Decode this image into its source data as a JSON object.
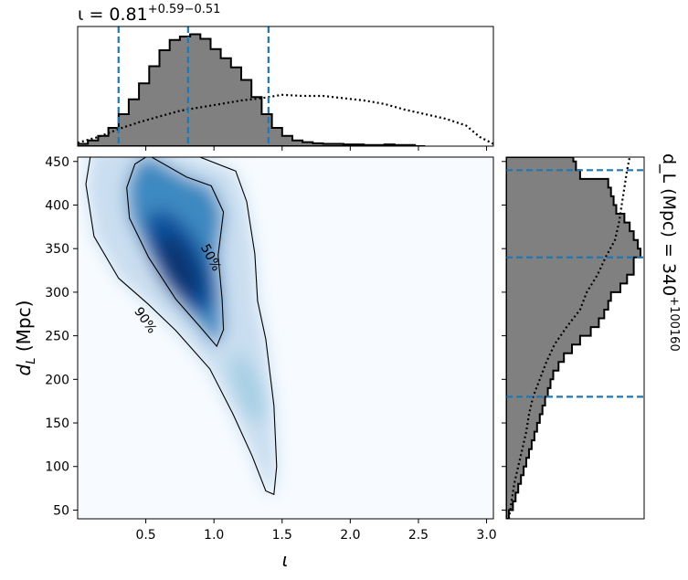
{
  "chart_data": [
    {
      "type": "heatmap",
      "panel": "joint-posterior",
      "xlabel": "ι",
      "ylabel": "d_L (Mpc)",
      "xlim": [
        0.0,
        3.05
      ],
      "ylim": [
        40,
        455
      ],
      "x_ticks": [
        0.5,
        1.0,
        1.5,
        2.0,
        2.5,
        3.0
      ],
      "x_tick_labels": [
        "0.5",
        "1.0",
        "1.5",
        "2.0",
        "2.5",
        "3.0"
      ],
      "y_ticks": [
        50,
        100,
        150,
        200,
        250,
        300,
        350,
        400,
        450
      ],
      "y_tick_labels": [
        "50",
        "100",
        "150",
        "200",
        "250",
        "300",
        "350",
        "400",
        "450"
      ],
      "colormap": "Blues",
      "density_peak": {
        "x": 0.75,
        "y": 335
      },
      "contours": [
        {
          "label": "50%",
          "points": [
            [
              0.52,
              457
            ],
            [
              0.8,
              432
            ],
            [
              0.98,
              422
            ],
            [
              1.07,
              392
            ],
            [
              1.03,
              342
            ],
            [
              1.06,
              292
            ],
            [
              1.07,
              257
            ],
            [
              1.02,
              238
            ],
            [
              0.9,
              260
            ],
            [
              0.72,
              292
            ],
            [
              0.52,
              340
            ],
            [
              0.38,
              385
            ],
            [
              0.36,
              420
            ],
            [
              0.42,
              447
            ],
            [
              0.52,
              457
            ]
          ]
        },
        {
          "label": "90%",
          "points": [
            [
              0.1,
              462
            ],
            [
              0.45,
              468
            ],
            [
              0.88,
              456
            ],
            [
              1.16,
              439
            ],
            [
              1.24,
              404
            ],
            [
              1.3,
              344
            ],
            [
              1.32,
              290
            ],
            [
              1.38,
              246
            ],
            [
              1.44,
              170
            ],
            [
              1.46,
              100
            ],
            [
              1.44,
              68
            ],
            [
              1.38,
              72
            ],
            [
              1.28,
              112
            ],
            [
              1.14,
              160
            ],
            [
              0.97,
              212
            ],
            [
              0.72,
              256
            ],
            [
              0.52,
              286
            ],
            [
              0.3,
              316
            ],
            [
              0.12,
              364
            ],
            [
              0.06,
              424
            ],
            [
              0.1,
              462
            ]
          ]
        }
      ],
      "grid": false
    },
    {
      "type": "bar",
      "panel": "marginal-iota",
      "title": "ι = 0.81",
      "title_sup": "+0.59",
      "title_sub": "−0.51",
      "xlim": [
        0.0,
        3.05
      ],
      "x_edges": [
        0.0,
        0.075,
        0.15,
        0.225,
        0.3,
        0.375,
        0.45,
        0.525,
        0.6,
        0.675,
        0.75,
        0.825,
        0.9,
        0.975,
        1.05,
        1.125,
        1.2,
        1.275,
        1.35,
        1.425,
        1.5,
        1.575,
        1.65,
        1.725,
        1.8,
        1.875,
        1.95,
        2.025,
        2.1,
        2.175,
        2.25,
        2.325,
        2.4,
        2.475,
        2.55
      ],
      "series": [
        {
          "style": "filled-step",
          "values": [
            0.02,
            0.05,
            0.09,
            0.16,
            0.28,
            0.41,
            0.55,
            0.7,
            0.84,
            0.93,
            0.96,
            0.98,
            0.94,
            0.85,
            0.77,
            0.69,
            0.58,
            0.43,
            0.28,
            0.16,
            0.09,
            0.05,
            0.035,
            0.025,
            0.02,
            0.02,
            0.015,
            0.015,
            0.01,
            0.01,
            0.015,
            0.01,
            0.01,
            0.0
          ]
        },
        {
          "style": "dotted-prior",
          "x": [
            0.0,
            0.15,
            0.3,
            0.45,
            0.6,
            0.75,
            0.9,
            1.05,
            1.2,
            1.35,
            1.5,
            1.65,
            1.8,
            1.95,
            2.1,
            2.25,
            2.4,
            2.55,
            2.7,
            2.85,
            2.95,
            3.05
          ],
          "values": [
            0.03,
            0.08,
            0.15,
            0.21,
            0.26,
            0.31,
            0.34,
            0.37,
            0.4,
            0.42,
            0.45,
            0.44,
            0.44,
            0.42,
            0.4,
            0.37,
            0.32,
            0.28,
            0.24,
            0.18,
            0.08,
            0.02
          ]
        }
      ],
      "vlines": [
        0.3,
        0.81,
        1.4
      ],
      "ylim": [
        0,
        1.0
      ]
    },
    {
      "type": "bar",
      "panel": "marginal-dL",
      "orientation": "horizontal",
      "side_label": "d_L (Mpc) = 340",
      "side_label_sup": "+100",
      "side_label_sub": "160",
      "ylim": [
        40,
        455
      ],
      "y_edges": [
        40,
        50,
        60,
        70,
        80,
        90,
        100,
        110,
        120,
        130,
        140,
        150,
        160,
        170,
        180,
        190,
        200,
        210,
        220,
        230,
        240,
        250,
        260,
        270,
        280,
        290,
        300,
        310,
        320,
        330,
        340,
        350,
        360,
        370,
        380,
        390,
        400,
        410,
        420,
        430,
        440,
        450,
        455
      ],
      "series": [
        {
          "style": "filled-step",
          "values": [
            0.02,
            0.05,
            0.07,
            0.09,
            0.11,
            0.13,
            0.15,
            0.17,
            0.19,
            0.21,
            0.23,
            0.25,
            0.27,
            0.29,
            0.31,
            0.33,
            0.35,
            0.39,
            0.43,
            0.49,
            0.55,
            0.63,
            0.69,
            0.73,
            0.76,
            0.78,
            0.85,
            0.9,
            0.95,
            0.95,
            1.0,
            0.98,
            0.95,
            0.92,
            0.88,
            0.82,
            0.8,
            0.78,
            0.76,
            0.55,
            0.52,
            0.5
          ]
        },
        {
          "style": "dotted-prior",
          "y": [
            40,
            60,
            80,
            100,
            120,
            140,
            160,
            180,
            200,
            220,
            240,
            260,
            280,
            300,
            320,
            340,
            360,
            380,
            400,
            420,
            440,
            455
          ],
          "values": [
            0.02,
            0.04,
            0.06,
            0.09,
            0.12,
            0.15,
            0.17,
            0.2,
            0.25,
            0.3,
            0.36,
            0.45,
            0.55,
            0.6,
            0.68,
            0.74,
            0.81,
            0.84,
            0.86,
            0.88,
            0.9,
            0.92
          ]
        }
      ],
      "hlines": [
        180,
        340,
        440
      ],
      "xlim": [
        0,
        1.0
      ]
    }
  ],
  "colors": {
    "fill": "#808080",
    "edge": "#000000",
    "quantile_lines": "#1f77b4",
    "cmap_low": "#f7fbff",
    "cmap_high": "#08306b"
  }
}
